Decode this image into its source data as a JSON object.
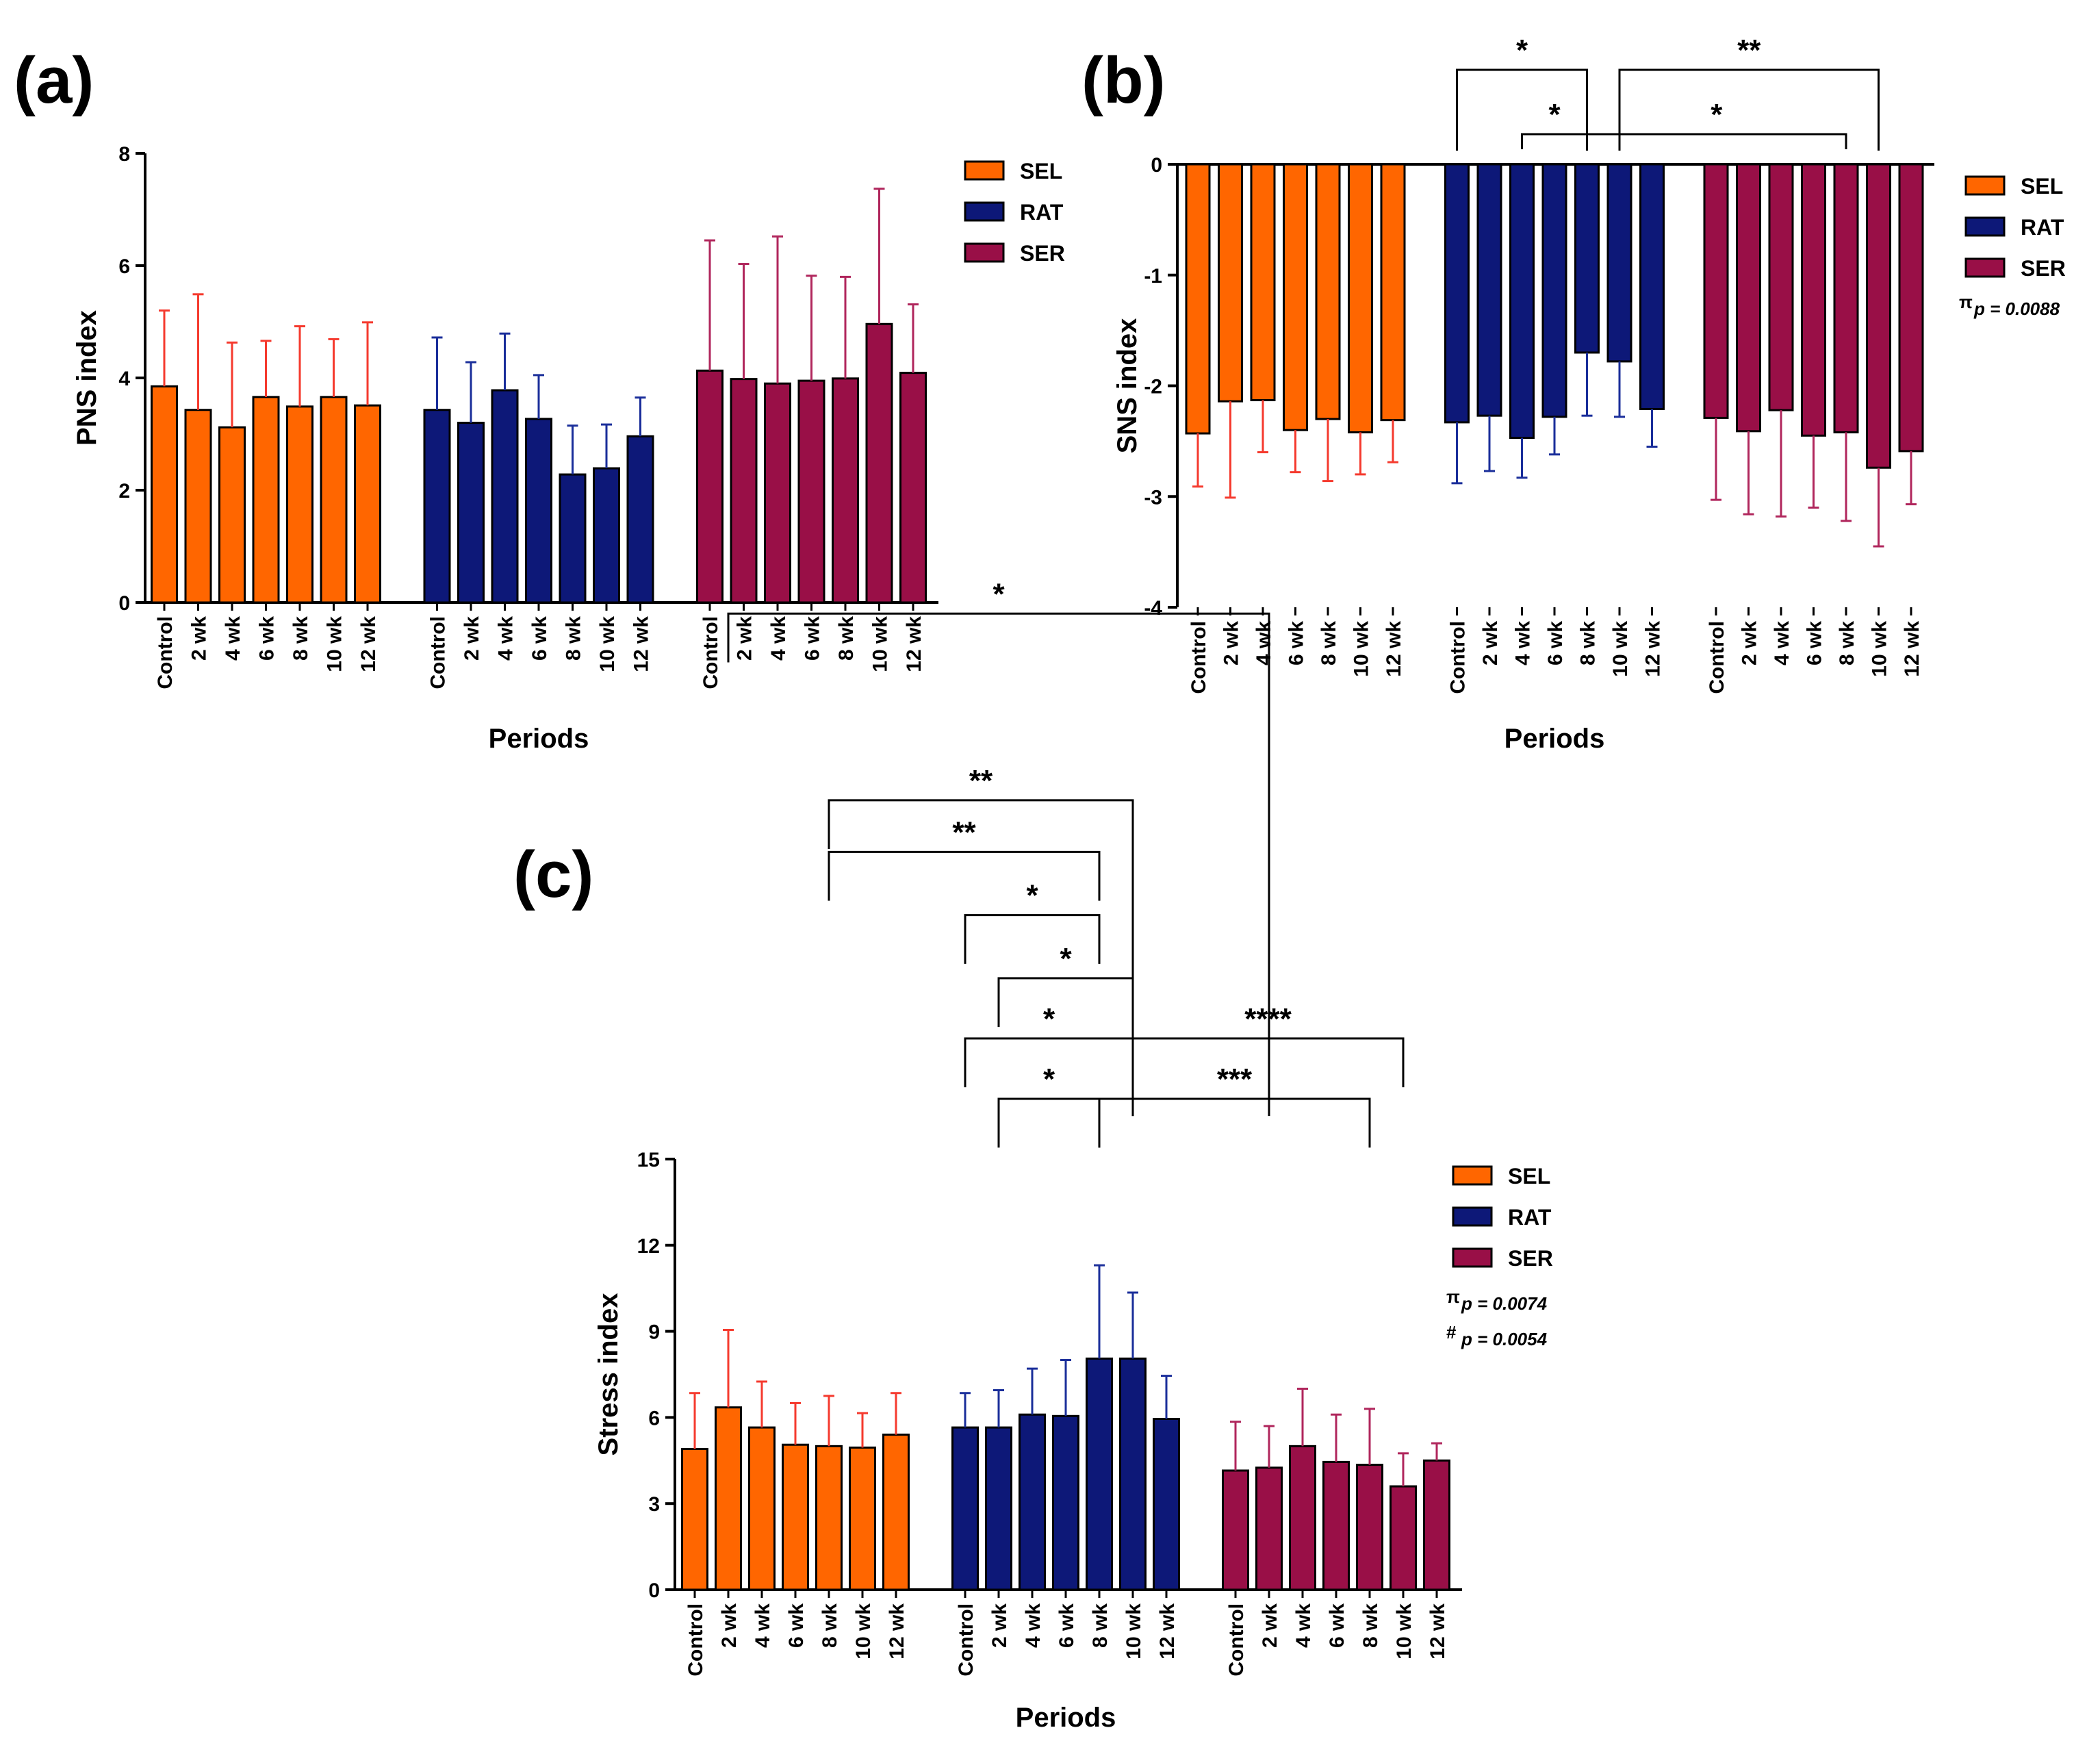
{
  "colors": {
    "SEL": "#FF6600",
    "RAT": "#0D1878",
    "SER": "#990F47",
    "err_SEL": "#F53A2E",
    "err_RAT": "#1A2E9A",
    "err_SER": "#B0265C"
  },
  "chart_data": [
    {
      "id": "a",
      "panel_label": "(a)",
      "type": "bar",
      "ylabel": "PNS index",
      "xlabel": "Periods",
      "ylim": [
        0,
        8
      ],
      "yticks": [
        "0",
        "2",
        "4",
        "6",
        "8"
      ],
      "ytick_values": [
        0,
        2,
        4,
        6,
        8
      ],
      "categories": [
        "Control",
        "2 wk",
        "4 wk",
        "6 wk",
        "8 wk",
        "10 wk",
        "12 wk"
      ],
      "legend": [
        "SEL",
        "RAT",
        "SER"
      ],
      "legend_position": "right",
      "series": [
        {
          "name": "SEL",
          "values": [
            3.85,
            3.43,
            3.12,
            3.66,
            3.49,
            3.66,
            3.51
          ],
          "errors": [
            1.35,
            2.06,
            1.51,
            1.0,
            1.43,
            1.03,
            1.48
          ]
        },
        {
          "name": "RAT",
          "values": [
            3.43,
            3.2,
            3.78,
            3.27,
            2.28,
            2.39,
            2.96
          ],
          "errors": [
            1.29,
            1.08,
            1.01,
            0.78,
            0.87,
            0.78,
            0.69
          ]
        },
        {
          "name": "SER",
          "values": [
            4.13,
            3.98,
            3.9,
            3.95,
            3.99,
            4.96,
            4.09
          ],
          "errors": [
            2.32,
            2.05,
            2.62,
            1.87,
            1.81,
            2.41,
            1.22
          ]
        }
      ],
      "notes": [],
      "significance": []
    },
    {
      "id": "b",
      "panel_label": "(b)",
      "type": "bar",
      "ylabel": "SNS index",
      "xlabel": "Periods",
      "ylim": [
        -4,
        0
      ],
      "yticks": [
        "0",
        "-1",
        "-2",
        "-3",
        "-4"
      ],
      "ytick_values": [
        0,
        -1,
        -2,
        -3,
        -4
      ],
      "categories": [
        "Control",
        "2 wk",
        "4 wk",
        "6 wk",
        "8 wk",
        "10 wk",
        "12 wk"
      ],
      "legend": [
        "SEL",
        "RAT",
        "SER"
      ],
      "legend_position": "right",
      "series": [
        {
          "name": "SEL",
          "values": [
            -2.43,
            -2.14,
            -2.13,
            -2.4,
            -2.3,
            -2.42,
            -2.31
          ],
          "errors": [
            0.48,
            0.87,
            0.47,
            0.38,
            0.56,
            0.38,
            0.38
          ]
        },
        {
          "name": "RAT",
          "values": [
            -2.33,
            -2.27,
            -2.47,
            -2.28,
            -1.7,
            -1.78,
            -2.21
          ],
          "errors": [
            0.55,
            0.5,
            0.36,
            0.34,
            0.57,
            0.5,
            0.34
          ]
        },
        {
          "name": "SER",
          "values": [
            -2.29,
            -2.41,
            -2.22,
            -2.45,
            -2.42,
            -2.74,
            -2.59
          ],
          "errors": [
            0.74,
            0.75,
            0.96,
            0.65,
            0.8,
            0.71,
            0.48
          ]
        }
      ],
      "notes": [
        {
          "sym": "π",
          "text": "p = 0.0088"
        }
      ],
      "significance": [
        {
          "stars": "*",
          "from": [
            1,
            0
          ],
          "to": [
            1,
            4
          ],
          "level": 2,
          "drop_from": 0.82,
          "drop_to": 0.82
        },
        {
          "stars": "**",
          "from": [
            1,
            5
          ],
          "to": [
            2,
            5
          ],
          "level": 2,
          "drop_from": 0.82,
          "drop_to": 0.82
        },
        {
          "stars": "*",
          "from": [
            1,
            2
          ],
          "to": [
            1,
            4
          ],
          "level": 1,
          "drop_from": 0.22,
          "drop_to": 0.22
        },
        {
          "stars": "*",
          "from": [
            1,
            4
          ],
          "to": [
            2,
            4
          ],
          "level": 1,
          "drop_from": 0.22,
          "drop_to": 0.22
        }
      ]
    },
    {
      "id": "c",
      "panel_label": "(c)",
      "type": "bar",
      "ylabel": "Stress index",
      "xlabel": "Periods",
      "ylim": [
        0,
        15
      ],
      "yticks": [
        "0",
        "3",
        "6",
        "9",
        "12",
        "15"
      ],
      "ytick_values": [
        0,
        3,
        6,
        9,
        12,
        15
      ],
      "categories": [
        "Control",
        "2 wk",
        "4 wk",
        "6 wk",
        "8 wk",
        "10 wk",
        "12 wk"
      ],
      "legend": [
        "SEL",
        "RAT",
        "SER"
      ],
      "legend_position": "right",
      "series": [
        {
          "name": "SEL",
          "values": [
            4.9,
            6.35,
            5.65,
            5.05,
            5.0,
            4.95,
            5.4
          ],
          "errors": [
            1.95,
            2.7,
            1.6,
            1.45,
            1.75,
            1.2,
            1.45
          ]
        },
        {
          "name": "RAT",
          "values": [
            5.65,
            5.65,
            6.1,
            6.05,
            8.05,
            8.05,
            5.95
          ],
          "errors": [
            1.2,
            1.3,
            1.6,
            1.95,
            3.25,
            2.3,
            1.5
          ]
        },
        {
          "name": "SER",
          "values": [
            4.15,
            4.25,
            5.0,
            4.45,
            4.35,
            3.6,
            4.5
          ],
          "errors": [
            1.7,
            1.45,
            2.0,
            1.65,
            1.95,
            1.15,
            0.6
          ]
        }
      ],
      "notes": [
        {
          "sym": "π",
          "text": "p = 0.0074"
        },
        {
          "sym": "#",
          "text": "p = 0.0054"
        }
      ],
      "significance": [
        {
          "stars": "*",
          "from": [
            0,
            1
          ],
          "to": [
            2,
            1
          ],
          "y": 34.0,
          "drop_to": 16.5
        },
        {
          "stars": "**",
          "from": [
            0,
            4
          ],
          "to": [
            1,
            5
          ],
          "y": 27.5,
          "drop_to": 16.5
        },
        {
          "stars": "**",
          "from": [
            0,
            4
          ],
          "to": [
            1,
            4
          ],
          "y": 25.7
        },
        {
          "stars": "*",
          "from": [
            1,
            0
          ],
          "to": [
            1,
            4
          ],
          "y": 23.5
        },
        {
          "stars": "*",
          "from": [
            1,
            1
          ],
          "to": [
            1,
            5
          ],
          "y": 21.3
        },
        {
          "stars": "*",
          "from": [
            1,
            0
          ],
          "to": [
            1,
            5
          ],
          "y": 19.2
        },
        {
          "stars": "****",
          "from": [
            1,
            5
          ],
          "to": [
            2,
            5
          ],
          "y": 19.2,
          "drop_from": 16.5
        },
        {
          "stars": "*",
          "from": [
            1,
            1
          ],
          "to": [
            1,
            4
          ],
          "y": 17.1
        },
        {
          "stars": "***",
          "from": [
            1,
            4
          ],
          "to": [
            2,
            4
          ],
          "y": 17.1
        }
      ]
    }
  ]
}
